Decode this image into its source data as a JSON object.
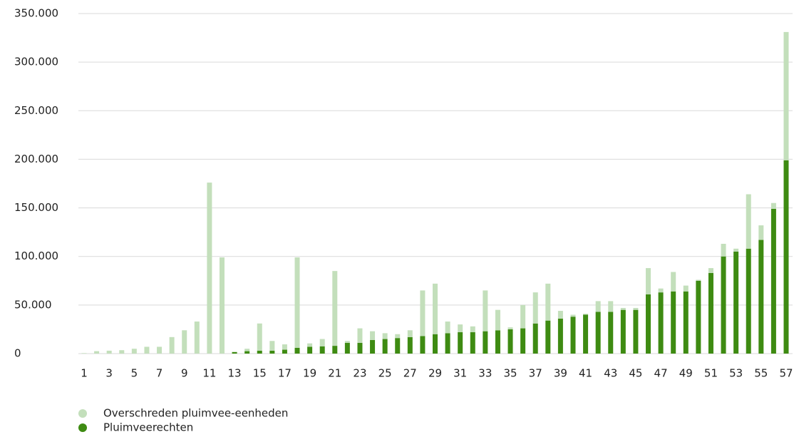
{
  "chart_data": {
    "type": "stacked_bar",
    "categories": [
      "1",
      null,
      "3",
      null,
      "5",
      null,
      "7",
      null,
      "9",
      null,
      "11",
      null,
      "13",
      null,
      "15",
      null,
      "17",
      null,
      "19",
      null,
      "21",
      null,
      "23",
      null,
      "25",
      null,
      "27",
      null,
      "29",
      null,
      "31",
      null,
      "33",
      null,
      "35",
      null,
      "37",
      null,
      "39",
      null,
      "41",
      null,
      "43",
      null,
      "45",
      null,
      "47",
      null,
      "49",
      null,
      "51",
      null,
      "53",
      null,
      "55",
      null,
      "57"
    ],
    "series": [
      {
        "name": "Pluimveerechten",
        "color": "#3e8b12",
        "values": [
          0,
          0,
          0,
          0,
          0,
          0,
          0,
          0,
          0,
          0,
          0,
          0,
          1500,
          2500,
          3000,
          3000,
          4000,
          6000,
          7000,
          7500,
          8000,
          11000,
          11000,
          14000,
          15000,
          16000,
          17000,
          18000,
          20000,
          21000,
          22000,
          22000,
          23000,
          24000,
          25000,
          26000,
          31000,
          34000,
          36000,
          38000,
          40000,
          43000,
          43000,
          45000,
          45000,
          61000,
          63000,
          64000,
          64000,
          75000,
          83000,
          100000,
          105000,
          108000,
          117000,
          149000,
          199000
        ]
      },
      {
        "name": "Overschreden pluimvee-eenheden",
        "color": "#c3dfbb",
        "values": [
          500,
          2500,
          3000,
          3500,
          5000,
          7000,
          7000,
          17000,
          24000,
          33000,
          176000,
          99000,
          500,
          2500,
          28000,
          10000,
          5500,
          93000,
          3500,
          7500,
          77000,
          2000,
          15000,
          9000,
          6000,
          4000,
          7000,
          47000,
          52000,
          12000,
          8000,
          6000,
          42000,
          21000,
          2000,
          24000,
          32000,
          38000,
          8000,
          2000,
          1000,
          11000,
          11000,
          2000,
          2000,
          27000,
          4000,
          20000,
          6000,
          1000,
          5000,
          13000,
          3000,
          56000,
          15000,
          6000,
          132000
        ]
      }
    ],
    "legend_order": [
      1,
      0
    ],
    "ylim": [
      0,
      350000
    ],
    "yticks": [
      0,
      {
        "value": 50000,
        "label": "50.000"
      },
      {
        "value": 100000,
        "label": "100.000"
      },
      {
        "value": 150000,
        "label": "150.000"
      },
      {
        "value": 200000,
        "label": "200.000"
      },
      {
        "value": 250000,
        "label": "250.000"
      },
      {
        "value": 300000,
        "label": "300.000"
      },
      {
        "value": 350000,
        "label": "350.000"
      }
    ],
    "grid": true
  }
}
